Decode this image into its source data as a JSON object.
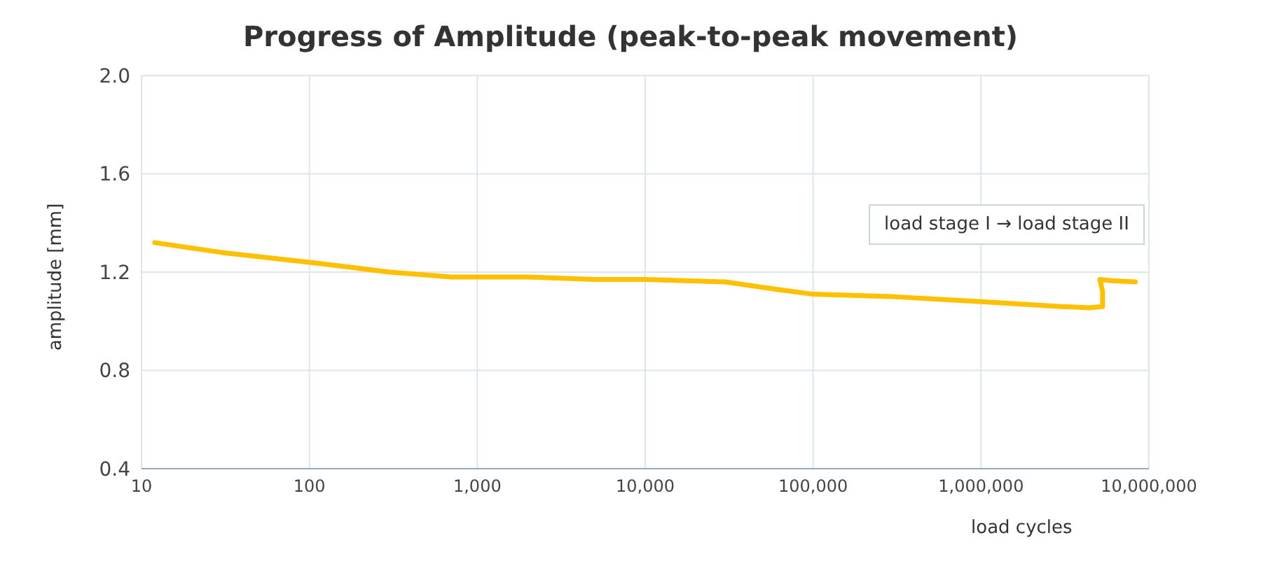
{
  "chart_data": {
    "type": "line",
    "title": "Progress of Amplitude (peak-to-peak movement)",
    "xlabel": "load cycles",
    "ylabel": "amplitude [mm]",
    "annotations": [
      "load stage I → load stage II"
    ],
    "log": "x",
    "grid": true,
    "marker": "none",
    "line_style": "solid",
    "xlim": [
      10,
      10000000
    ],
    "xticks": [
      10,
      100,
      {
        "value": 1000,
        "label": "1,000"
      },
      {
        "value": 10000,
        "label": "10,000"
      },
      {
        "value": 100000,
        "label": "100,000"
      },
      {
        "value": 1000000,
        "label": "1,000,000"
      },
      {
        "value": 10000000,
        "label": "10,000,000"
      }
    ],
    "ylim": [
      0.4,
      2.0
    ],
    "yticks": [
      {
        "value": 0.4,
        "label": "0.4"
      },
      {
        "value": 0.8,
        "label": "0.8"
      },
      {
        "value": 1.2,
        "label": "1.2"
      },
      {
        "value": 1.6,
        "label": "1.6"
      },
      {
        "value": 2.0,
        "label": "2.0"
      }
    ],
    "series": [
      {
        "color": "#ffc000",
        "x": [
          12,
          30,
          100,
          300,
          700,
          1000,
          2000,
          5000,
          10000,
          30000,
          60000,
          100000,
          300000,
          1000000,
          3000000,
          4400000,
          5300000,
          5300000,
          5100000,
          6000000,
          8300000
        ],
        "values": [
          1.32,
          1.28,
          1.24,
          1.2,
          1.18,
          1.18,
          1.18,
          1.17,
          1.17,
          1.16,
          1.13,
          1.11,
          1.1,
          1.08,
          1.06,
          1.055,
          1.06,
          1.12,
          1.17,
          1.165,
          1.16
        ]
      }
    ]
  }
}
